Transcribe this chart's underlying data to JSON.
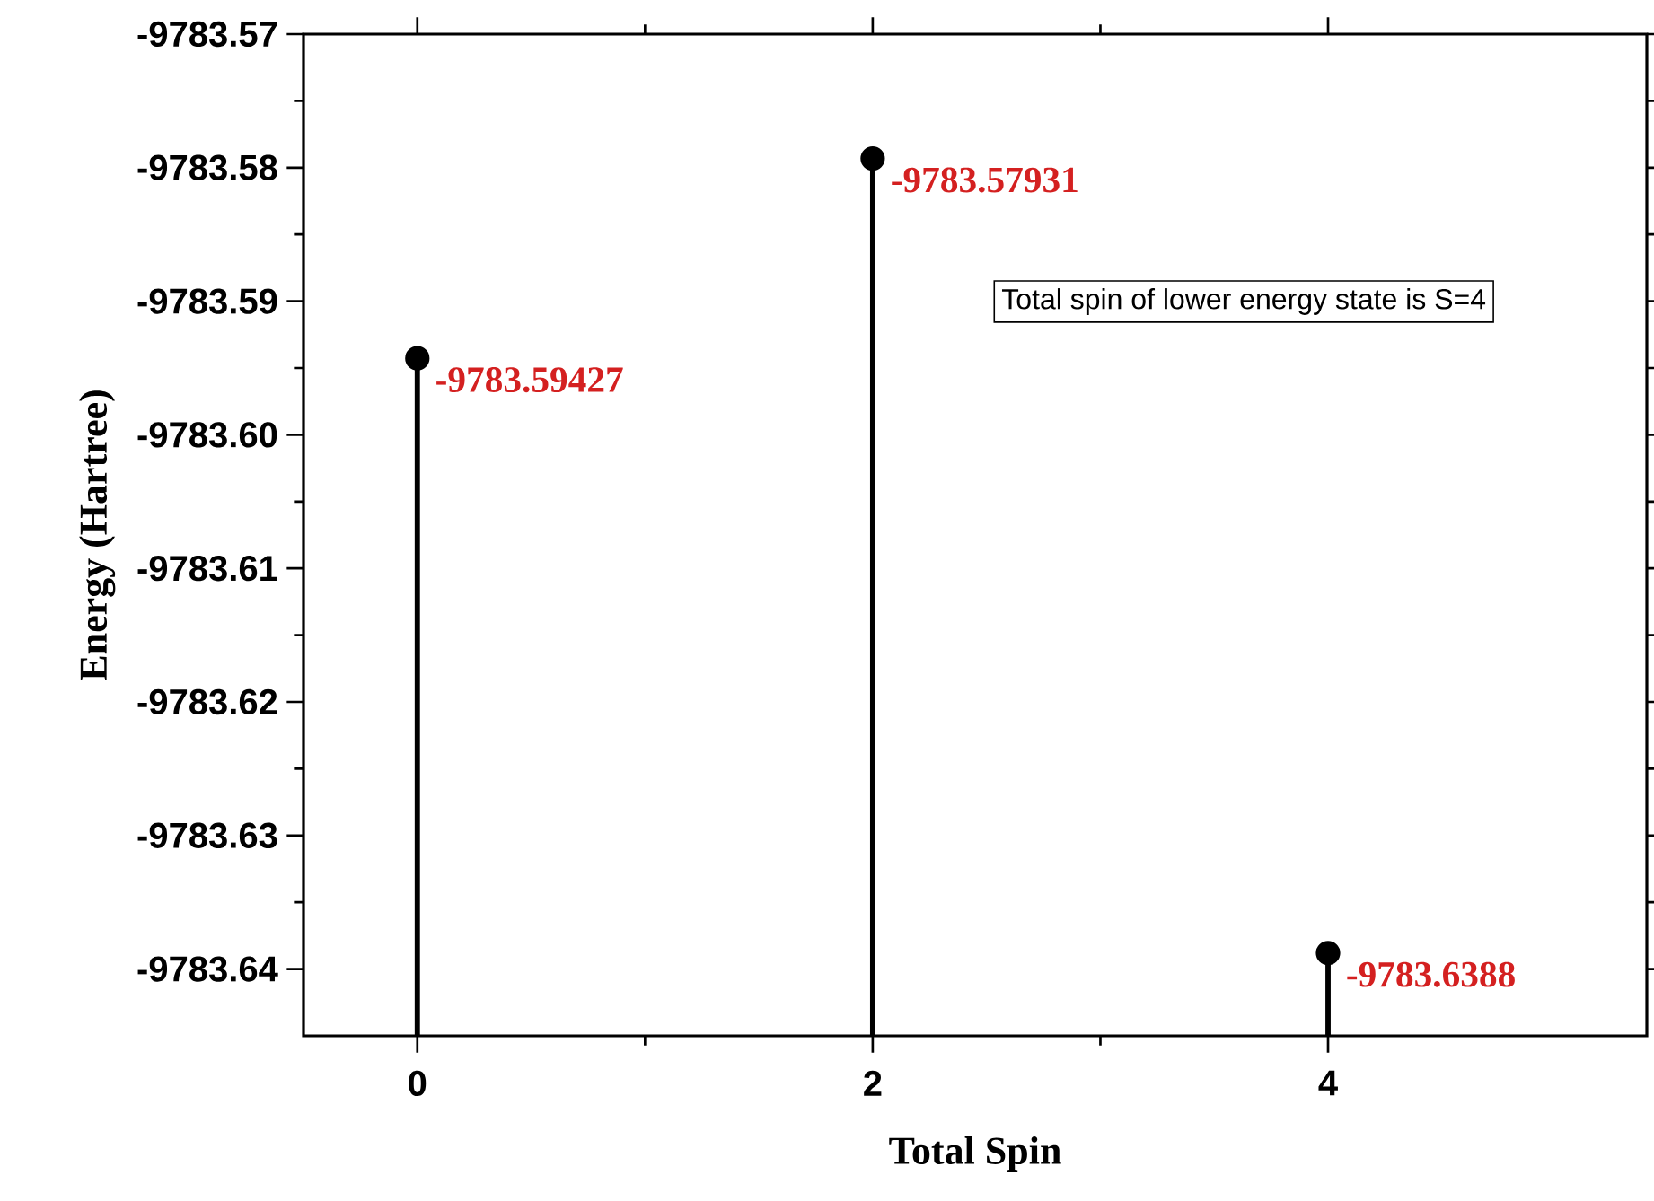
{
  "chart_data": {
    "type": "lollipop",
    "xlabel": "Total Spin",
    "ylabel": "Energy (Hartree)",
    "x": [
      0,
      2,
      4
    ],
    "values": [
      -9783.59427,
      -9783.57931,
      -9783.6388
    ],
    "value_labels": [
      "-9783.59427",
      "-9783.57931",
      "-9783.6388"
    ],
    "color": "#000000",
    "marker": "circle",
    "line_style": "solid",
    "xlim": [
      -0.5,
      5.4
    ],
    "ylim": [
      -9783.645,
      -9783.57
    ],
    "xticks": [
      0,
      2,
      4
    ],
    "yticks": [
      -9783.57,
      -9783.58,
      -9783.59,
      {
        "value": -9783.6,
        "label": "-9783.60"
      },
      -9783.61,
      -9783.62,
      -9783.63,
      -9783.64
    ],
    "annotations": [
      "Total spin of lower energy state is S=4"
    ]
  }
}
